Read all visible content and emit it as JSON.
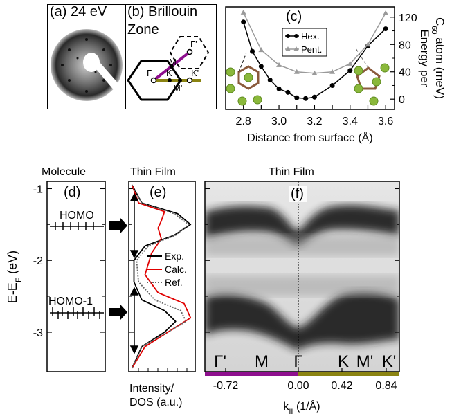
{
  "panel_a": {
    "label": "(a) 24 eV"
  },
  "panel_b": {
    "label_line1": "(b) Brillouin",
    "label_line2": "Zone",
    "points": {
      "gamma": "Γ",
      "gamma_prime": "Γ'",
      "M": "M",
      "K": "K",
      "M_prime": "M'",
      "K_prime": "K'"
    }
  },
  "panel_c": {
    "label": "(c)"
  },
  "panel_d": {
    "header": "Molecule",
    "label": "(d)",
    "homo": "HOMO",
    "homo1": "HOMO-1"
  },
  "panel_e": {
    "header": "Thin Film",
    "label": "(e)",
    "xlabel_line1": "Intensity/",
    "xlabel_line2": "DOS (a.u.)"
  },
  "panel_f": {
    "header": "Thin Film",
    "label": "(f)",
    "xlabel": "k∥ (1/Å)",
    "kpoints": [
      "Γ'",
      "M",
      "Γ",
      "K",
      "M'",
      "K'"
    ]
  },
  "shared": {
    "ylabel": "E-E_F (eV)",
    "yticks": [
      "-1",
      "-2",
      "-3"
    ]
  },
  "colors": {
    "hex": "#000000",
    "pent": "#9a9a9a",
    "calc": "#e00000",
    "purple": "#8e0f8e",
    "olive": "#8b8412"
  },
  "chart_data": [
    {
      "type": "line",
      "title": "",
      "xlabel": "Distance from surface (Å)",
      "ylabel": "Energy per C60 atom (meV)",
      "xlim": [
        2.7,
        3.65
      ],
      "ylim": [
        -15,
        135
      ],
      "xticks": [
        "2.8",
        "2.9",
        "3.0",
        "3.1",
        "3.2",
        "3.3",
        "3.4",
        "3.5",
        "3.6"
      ],
      "yticks": [
        "0",
        "40",
        "80",
        "120"
      ],
      "legend": [
        "Hex.",
        "Pent."
      ],
      "legend_position": "top-left",
      "series": [
        {
          "name": "Hex.",
          "x": [
            2.8,
            2.85,
            2.9,
            2.95,
            3.0,
            3.05,
            3.1,
            3.15,
            3.2,
            3.3,
            3.4,
            3.5,
            3.6
          ],
          "y": [
            113,
            70,
            48,
            28,
            15,
            10,
            2,
            1,
            3,
            20,
            42,
            78,
            103
          ]
        },
        {
          "name": "Pent.",
          "x": [
            2.8,
            2.9,
            3.0,
            3.1,
            3.2,
            3.3,
            3.4,
            3.5,
            3.6
          ],
          "y": [
            127,
            72,
            50,
            40,
            38,
            40,
            52,
            80,
            126
          ]
        }
      ]
    },
    {
      "type": "line",
      "title": "",
      "xlabel": "Intensity/ DOS (a.u.)",
      "ylabel": "E-E_F (eV)",
      "ylim": [
        -3.55,
        -0.9
      ],
      "legend": [
        "Exp.",
        "Calc.",
        "Ref."
      ],
      "legend_position": "center-right",
      "series": [
        {
          "name": "Exp.",
          "energy": [
            -0.95,
            -1.2,
            -1.35,
            -1.5,
            -1.65,
            -1.8,
            -2.0,
            -2.3,
            -2.55,
            -2.7,
            -2.85,
            -3.0,
            -3.2,
            -3.5
          ],
          "intensity": [
            0.05,
            0.2,
            0.75,
            0.95,
            0.7,
            0.25,
            0.08,
            0.08,
            0.2,
            0.55,
            0.72,
            0.55,
            0.2,
            0.05
          ]
        },
        {
          "name": "Calc.",
          "energy": [
            -0.95,
            -1.2,
            -1.32,
            -1.45,
            -1.55,
            -1.7,
            -1.9,
            -2.2,
            -2.45,
            -2.6,
            -2.8,
            -3.0,
            -3.2,
            -3.5
          ],
          "intensity": [
            0.05,
            0.15,
            0.55,
            0.5,
            0.45,
            0.5,
            0.35,
            0.25,
            0.45,
            0.85,
            0.95,
            0.6,
            0.25,
            0.05
          ]
        },
        {
          "name": "Ref.",
          "energy": [
            -0.95,
            -1.2,
            -1.35,
            -1.5,
            -1.65,
            -1.8,
            -2.0,
            -2.3,
            -2.55,
            -2.7,
            -2.85,
            -3.0,
            -3.2,
            -3.5
          ],
          "intensity": [
            0.05,
            0.2,
            0.7,
            0.92,
            0.72,
            0.3,
            0.12,
            0.15,
            0.4,
            0.8,
            0.88,
            0.6,
            0.2,
            0.05
          ]
        }
      ]
    }
  ]
}
